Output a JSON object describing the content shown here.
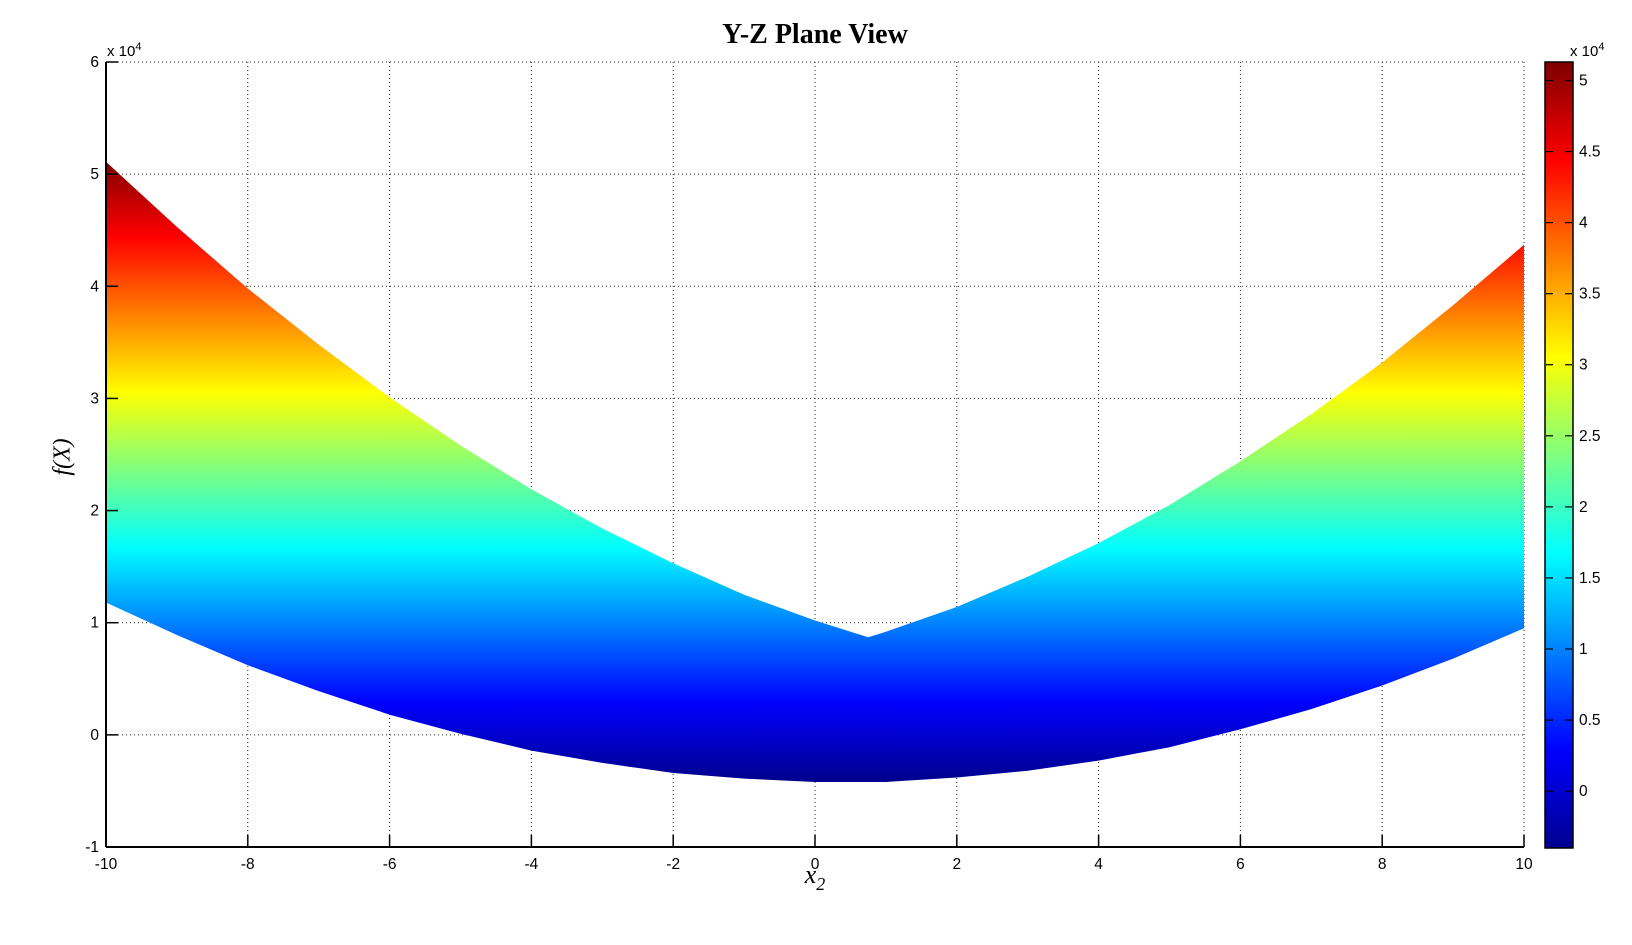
{
  "figure": {
    "background": "#ffffff"
  },
  "chart_data": {
    "type": "area",
    "title": "Y-Z Plane View",
    "xlabel_base": "x",
    "xlabel_sub": "2",
    "ylabel": "f(X)",
    "y_multiplier_base": "x 10",
    "y_multiplier_exp": "4",
    "unit_scale": 10000,
    "xlim": [
      -10,
      10
    ],
    "ylim": [
      -1,
      6
    ],
    "x_ticks": [
      -10,
      -8,
      -6,
      -4,
      -2,
      0,
      2,
      4,
      6,
      8,
      10
    ],
    "y_ticks": [
      -1,
      0,
      1,
      2,
      3,
      4,
      5,
      6
    ],
    "grid": true,
    "grid_style": "dotted",
    "colormap": "jet",
    "clim": [
      -0.4,
      5.13
    ],
    "jet_stops": [
      {
        "t": 0,
        "color": "#00008F"
      },
      {
        "t": 0.125,
        "color": "#0000FF"
      },
      {
        "t": 0.375,
        "color": "#00FFFF"
      },
      {
        "t": 0.625,
        "color": "#FFFF00"
      },
      {
        "t": 0.875,
        "color": "#FF0000"
      },
      {
        "t": 1,
        "color": "#7F0000"
      }
    ],
    "colorbar": {
      "position": "right",
      "ticks": [
        0,
        0.5,
        1,
        1.5,
        2,
        2.5,
        3,
        3.5,
        4,
        4.5,
        5
      ],
      "multiplier_base": "x 10",
      "multiplier_exp": "4"
    },
    "band": {
      "description": "Side (Y-Z plane) projection of surface f(X): filled envelope between max and min of f over x1, colored by f value with jet colormap; values in units of 1e4",
      "notch": [
        0.75,
        0.87
      ],
      "upper": [
        [
          -10,
          5.11
        ],
        [
          -9,
          4.53
        ],
        [
          -8,
          3.98
        ],
        [
          -7,
          3.48
        ],
        [
          -6,
          3.01
        ],
        [
          -5,
          2.58
        ],
        [
          -4,
          2.19
        ],
        [
          -3,
          1.84
        ],
        [
          -2,
          1.53
        ],
        [
          -1,
          1.25
        ],
        [
          0,
          1.02
        ],
        [
          0.75,
          0.87
        ],
        [
          1,
          0.92
        ],
        [
          2,
          1.14
        ],
        [
          3,
          1.41
        ],
        [
          4,
          1.71
        ],
        [
          5,
          2.05
        ],
        [
          6,
          2.44
        ],
        [
          7,
          2.86
        ],
        [
          8,
          3.32
        ],
        [
          9,
          3.83
        ],
        [
          10,
          4.37
        ]
      ],
      "lower": [
        [
          -10,
          1.18
        ],
        [
          -9,
          0.89
        ],
        [
          -8,
          0.62
        ],
        [
          -7,
          0.39
        ],
        [
          -6,
          0.18
        ],
        [
          -5,
          0.01
        ],
        [
          -4,
          -0.14
        ],
        [
          -3,
          -0.25
        ],
        [
          -2,
          -0.34
        ],
        [
          -1,
          -0.39
        ],
        [
          0,
          -0.42
        ],
        [
          1,
          -0.42
        ],
        [
          2,
          -0.38
        ],
        [
          3,
          -0.32
        ],
        [
          4,
          -0.23
        ],
        [
          5,
          -0.11
        ],
        [
          6,
          0.05
        ],
        [
          7,
          0.23
        ],
        [
          8,
          0.44
        ],
        [
          9,
          0.68
        ],
        [
          10,
          0.95
        ]
      ]
    }
  }
}
